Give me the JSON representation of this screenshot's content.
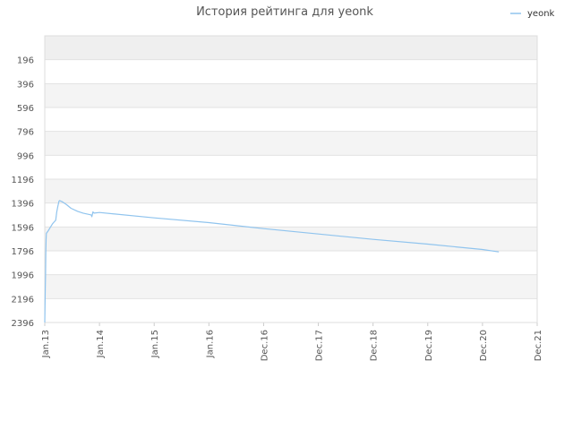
{
  "chart_data": {
    "type": "line",
    "title": "История рейтинга для yeonk",
    "xlabel": "",
    "ylabel": "",
    "y_inverted": true,
    "ylim": [
      2396,
      -4
    ],
    "yticks": [
      196,
      396,
      596,
      796,
      996,
      1196,
      1396,
      1596,
      1796,
      1996,
      2196,
      2396
    ],
    "xticks": [
      {
        "label": "Jan.13",
        "t": 2013.0
      },
      {
        "label": "Jan.14",
        "t": 2014.0
      },
      {
        "label": "Jan.15",
        "t": 2015.0
      },
      {
        "label": "Jan.16",
        "t": 2016.0
      },
      {
        "label": "Dec.16",
        "t": 2017.0
      },
      {
        "label": "Dec.17",
        "t": 2018.0
      },
      {
        "label": "Dec.18",
        "t": 2019.0
      },
      {
        "label": "Dec.19",
        "t": 2020.0
      },
      {
        "label": "Dec.20",
        "t": 2021.0
      },
      {
        "label": "Dec.21",
        "t": 2022.0
      }
    ],
    "xlim": [
      2013.0,
      2022.0
    ],
    "grid": true,
    "legend": {
      "position": "top-right"
    },
    "series": [
      {
        "name": "yeonk",
        "color": "#90c4ee",
        "x": [
          2013.0,
          2013.01,
          2013.015,
          2013.02,
          2013.025,
          2013.03,
          2013.06,
          2013.1,
          2013.14,
          2013.16,
          2013.2,
          2013.22,
          2013.24,
          2013.25,
          2013.26,
          2013.27,
          2013.32,
          2013.4,
          2013.48,
          2013.6,
          2013.7,
          2013.85,
          2013.86,
          2013.88,
          2013.9,
          2014.0,
          2015.0,
          2016.0,
          2017.0,
          2018.0,
          2019.0,
          2020.0,
          2021.0,
          2021.3
        ],
        "y": [
          2396,
          2100,
          1996,
          1800,
          1700,
          1650,
          1630,
          1600,
          1570,
          1560,
          1540,
          1470,
          1420,
          1400,
          1380,
          1375,
          1385,
          1410,
          1440,
          1465,
          1480,
          1495,
          1510,
          1470,
          1480,
          1475,
          1520,
          1560,
          1610,
          1655,
          1700,
          1740,
          1785,
          1805
        ]
      }
    ]
  }
}
